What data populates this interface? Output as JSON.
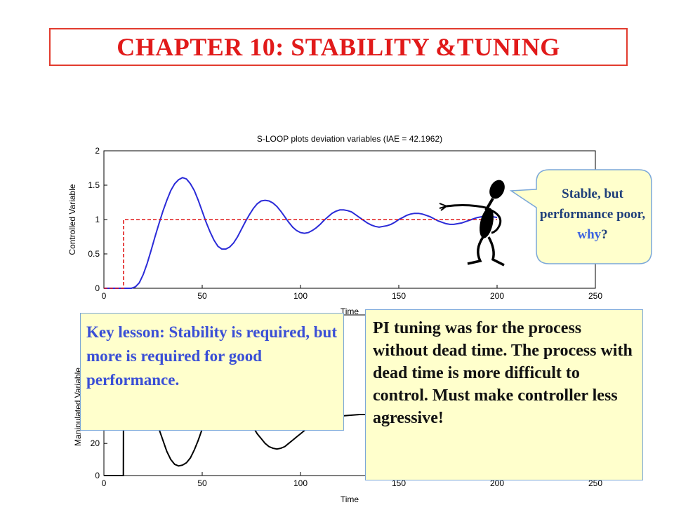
{
  "slide": {
    "title": "CHAPTER 10: STABILITY &TUNING",
    "speech_bubble": {
      "text_main": "Stable, but performance poor, ",
      "text_emph": "why",
      "text_end": "?"
    },
    "key_lesson": "Key lesson: Stability is required, but more is required for good performance.",
    "pi_note": "PI tuning was for the process without dead time. The process with dead time is more difficult to control.  Must make controller less agressive!",
    "figure_icon": "pointing-stick-figure"
  },
  "chart_data": [
    {
      "type": "line",
      "title": "S-LOOP plots deviation variables (IAE = 42.1962)",
      "xlabel": "Time",
      "ylabel": "Controlled Variable",
      "xlim": [
        0,
        250
      ],
      "ylim": [
        0,
        2
      ],
      "xticks": [
        "0",
        "50",
        "100",
        "150",
        "200",
        "250"
      ],
      "yticks": [
        "0",
        "0.5",
        "1",
        "1.5",
        "2"
      ],
      "grid": false,
      "series": [
        {
          "color": "#2b2bd8",
          "style": "solid",
          "x": [
            0,
            14,
            16,
            18,
            20,
            22,
            24,
            26,
            28,
            30,
            32,
            34,
            36,
            38,
            40,
            42,
            44,
            46,
            48,
            50,
            52,
            54,
            56,
            58,
            60,
            62,
            64,
            66,
            68,
            70,
            72,
            74,
            76,
            78,
            80,
            82,
            84,
            86,
            88,
            90,
            92,
            94,
            96,
            98,
            100,
            102,
            104,
            106,
            108,
            110,
            112,
            114,
            116,
            118,
            120,
            122,
            124,
            126,
            128,
            130,
            132,
            134,
            136,
            138,
            140,
            142,
            144,
            146,
            148,
            150,
            152,
            154,
            156,
            158,
            160,
            162,
            164,
            166,
            168,
            170,
            172,
            174,
            176,
            178,
            180,
            182,
            184,
            186,
            188,
            190,
            192,
            194,
            196,
            198,
            200
          ],
          "y": [
            0,
            0,
            0.02,
            0.08,
            0.2,
            0.36,
            0.55,
            0.75,
            0.94,
            1.12,
            1.28,
            1.42,
            1.52,
            1.58,
            1.61,
            1.59,
            1.52,
            1.42,
            1.28,
            1.12,
            0.96,
            0.82,
            0.7,
            0.61,
            0.57,
            0.57,
            0.6,
            0.66,
            0.75,
            0.86,
            0.97,
            1.07,
            1.16,
            1.23,
            1.27,
            1.28,
            1.27,
            1.24,
            1.19,
            1.12,
            1.04,
            0.96,
            0.89,
            0.84,
            0.81,
            0.8,
            0.81,
            0.84,
            0.88,
            0.93,
            0.99,
            1.04,
            1.09,
            1.12,
            1.14,
            1.14,
            1.13,
            1.11,
            1.07,
            1.03,
            0.99,
            0.95,
            0.92,
            0.9,
            0.89,
            0.9,
            0.91,
            0.93,
            0.96,
            1.0,
            1.03,
            1.06,
            1.08,
            1.09,
            1.09,
            1.08,
            1.06,
            1.04,
            1.01,
            0.98,
            0.96,
            0.94,
            0.93,
            0.93,
            0.94,
            0.95,
            0.97,
            0.99,
            1.01,
            1.03,
            1.04,
            1.05,
            1.05,
            1.04,
            1.03
          ]
        },
        {
          "color": "#e01b1b",
          "style": "dashed",
          "x": [
            0,
            10,
            10,
            200
          ],
          "y": [
            0,
            0,
            1,
            1
          ]
        }
      ]
    },
    {
      "type": "line",
      "xlabel": "Time",
      "ylabel": "Manipulated Variable",
      "xlim": [
        0,
        250
      ],
      "ylim": [
        0,
        100
      ],
      "xticks": [
        "0",
        "50",
        "100",
        "150",
        "200",
        "250"
      ],
      "yticks": [
        "0",
        "20"
      ],
      "grid": false,
      "series": [
        {
          "color": "#000000",
          "style": "solid",
          "x": [
            0,
            9.9,
            10,
            12,
            14,
            16,
            18,
            20,
            22,
            24,
            26,
            28,
            30,
            32,
            34,
            36,
            38,
            40,
            42,
            44,
            46,
            48,
            50,
            52,
            54,
            56,
            58,
            60,
            62,
            64,
            66,
            68,
            70,
            72,
            74,
            76,
            78,
            80,
            82,
            84,
            86,
            88,
            90,
            92,
            94,
            96,
            98,
            100,
            102,
            104,
            106,
            108,
            110,
            114,
            120,
            130,
            140,
            150,
            160,
            170,
            180,
            190,
            200
          ],
          "y": [
            0,
            0,
            60,
            60,
            59.2,
            57.5,
            55,
            52,
            48,
            42,
            36,
            29,
            22,
            15,
            10,
            7,
            6,
            6.5,
            8,
            11,
            16,
            22,
            29,
            36,
            42,
            47,
            50,
            51.5,
            52,
            51,
            49,
            46,
            42,
            38,
            34,
            30,
            26,
            23,
            20,
            18,
            17,
            16.5,
            17,
            18,
            20,
            22,
            24,
            26,
            28,
            30,
            32,
            33.5,
            35,
            36,
            37,
            38,
            38,
            37,
            37,
            38,
            37,
            37,
            37
          ]
        }
      ]
    }
  ]
}
